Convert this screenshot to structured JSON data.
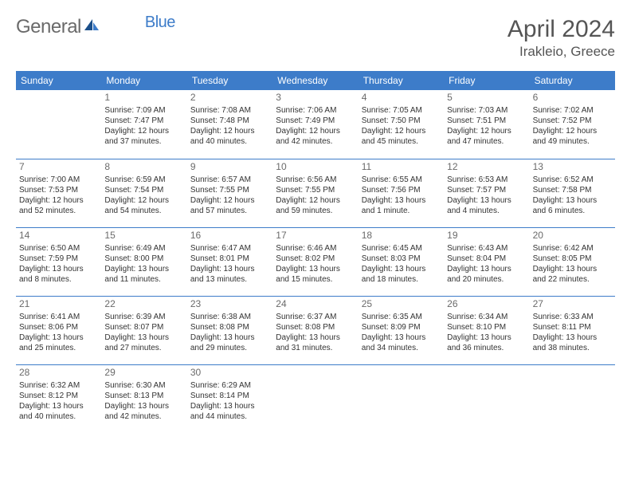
{
  "logo": {
    "text1": "General",
    "text2": "Blue"
  },
  "title": "April 2024",
  "location": "Irakleio, Greece",
  "header_colors": {
    "bar": "#3d7cc9",
    "text": "#ffffff"
  },
  "grid": {
    "rows": 5,
    "cols": 7,
    "border_color": "#3d7cc9"
  },
  "dayNames": [
    "Sunday",
    "Monday",
    "Tuesday",
    "Wednesday",
    "Thursday",
    "Friday",
    "Saturday"
  ],
  "weeks": [
    [
      null,
      {
        "n": "1",
        "sr": "Sunrise: 7:09 AM",
        "ss": "Sunset: 7:47 PM",
        "d1": "Daylight: 12 hours",
        "d2": "and 37 minutes."
      },
      {
        "n": "2",
        "sr": "Sunrise: 7:08 AM",
        "ss": "Sunset: 7:48 PM",
        "d1": "Daylight: 12 hours",
        "d2": "and 40 minutes."
      },
      {
        "n": "3",
        "sr": "Sunrise: 7:06 AM",
        "ss": "Sunset: 7:49 PM",
        "d1": "Daylight: 12 hours",
        "d2": "and 42 minutes."
      },
      {
        "n": "4",
        "sr": "Sunrise: 7:05 AM",
        "ss": "Sunset: 7:50 PM",
        "d1": "Daylight: 12 hours",
        "d2": "and 45 minutes."
      },
      {
        "n": "5",
        "sr": "Sunrise: 7:03 AM",
        "ss": "Sunset: 7:51 PM",
        "d1": "Daylight: 12 hours",
        "d2": "and 47 minutes."
      },
      {
        "n": "6",
        "sr": "Sunrise: 7:02 AM",
        "ss": "Sunset: 7:52 PM",
        "d1": "Daylight: 12 hours",
        "d2": "and 49 minutes."
      }
    ],
    [
      {
        "n": "7",
        "sr": "Sunrise: 7:00 AM",
        "ss": "Sunset: 7:53 PM",
        "d1": "Daylight: 12 hours",
        "d2": "and 52 minutes."
      },
      {
        "n": "8",
        "sr": "Sunrise: 6:59 AM",
        "ss": "Sunset: 7:54 PM",
        "d1": "Daylight: 12 hours",
        "d2": "and 54 minutes."
      },
      {
        "n": "9",
        "sr": "Sunrise: 6:57 AM",
        "ss": "Sunset: 7:55 PM",
        "d1": "Daylight: 12 hours",
        "d2": "and 57 minutes."
      },
      {
        "n": "10",
        "sr": "Sunrise: 6:56 AM",
        "ss": "Sunset: 7:55 PM",
        "d1": "Daylight: 12 hours",
        "d2": "and 59 minutes."
      },
      {
        "n": "11",
        "sr": "Sunrise: 6:55 AM",
        "ss": "Sunset: 7:56 PM",
        "d1": "Daylight: 13 hours",
        "d2": "and 1 minute."
      },
      {
        "n": "12",
        "sr": "Sunrise: 6:53 AM",
        "ss": "Sunset: 7:57 PM",
        "d1": "Daylight: 13 hours",
        "d2": "and 4 minutes."
      },
      {
        "n": "13",
        "sr": "Sunrise: 6:52 AM",
        "ss": "Sunset: 7:58 PM",
        "d1": "Daylight: 13 hours",
        "d2": "and 6 minutes."
      }
    ],
    [
      {
        "n": "14",
        "sr": "Sunrise: 6:50 AM",
        "ss": "Sunset: 7:59 PM",
        "d1": "Daylight: 13 hours",
        "d2": "and 8 minutes."
      },
      {
        "n": "15",
        "sr": "Sunrise: 6:49 AM",
        "ss": "Sunset: 8:00 PM",
        "d1": "Daylight: 13 hours",
        "d2": "and 11 minutes."
      },
      {
        "n": "16",
        "sr": "Sunrise: 6:47 AM",
        "ss": "Sunset: 8:01 PM",
        "d1": "Daylight: 13 hours",
        "d2": "and 13 minutes."
      },
      {
        "n": "17",
        "sr": "Sunrise: 6:46 AM",
        "ss": "Sunset: 8:02 PM",
        "d1": "Daylight: 13 hours",
        "d2": "and 15 minutes."
      },
      {
        "n": "18",
        "sr": "Sunrise: 6:45 AM",
        "ss": "Sunset: 8:03 PM",
        "d1": "Daylight: 13 hours",
        "d2": "and 18 minutes."
      },
      {
        "n": "19",
        "sr": "Sunrise: 6:43 AM",
        "ss": "Sunset: 8:04 PM",
        "d1": "Daylight: 13 hours",
        "d2": "and 20 minutes."
      },
      {
        "n": "20",
        "sr": "Sunrise: 6:42 AM",
        "ss": "Sunset: 8:05 PM",
        "d1": "Daylight: 13 hours",
        "d2": "and 22 minutes."
      }
    ],
    [
      {
        "n": "21",
        "sr": "Sunrise: 6:41 AM",
        "ss": "Sunset: 8:06 PM",
        "d1": "Daylight: 13 hours",
        "d2": "and 25 minutes."
      },
      {
        "n": "22",
        "sr": "Sunrise: 6:39 AM",
        "ss": "Sunset: 8:07 PM",
        "d1": "Daylight: 13 hours",
        "d2": "and 27 minutes."
      },
      {
        "n": "23",
        "sr": "Sunrise: 6:38 AM",
        "ss": "Sunset: 8:08 PM",
        "d1": "Daylight: 13 hours",
        "d2": "and 29 minutes."
      },
      {
        "n": "24",
        "sr": "Sunrise: 6:37 AM",
        "ss": "Sunset: 8:08 PM",
        "d1": "Daylight: 13 hours",
        "d2": "and 31 minutes."
      },
      {
        "n": "25",
        "sr": "Sunrise: 6:35 AM",
        "ss": "Sunset: 8:09 PM",
        "d1": "Daylight: 13 hours",
        "d2": "and 34 minutes."
      },
      {
        "n": "26",
        "sr": "Sunrise: 6:34 AM",
        "ss": "Sunset: 8:10 PM",
        "d1": "Daylight: 13 hours",
        "d2": "and 36 minutes."
      },
      {
        "n": "27",
        "sr": "Sunrise: 6:33 AM",
        "ss": "Sunset: 8:11 PM",
        "d1": "Daylight: 13 hours",
        "d2": "and 38 minutes."
      }
    ],
    [
      {
        "n": "28",
        "sr": "Sunrise: 6:32 AM",
        "ss": "Sunset: 8:12 PM",
        "d1": "Daylight: 13 hours",
        "d2": "and 40 minutes."
      },
      {
        "n": "29",
        "sr": "Sunrise: 6:30 AM",
        "ss": "Sunset: 8:13 PM",
        "d1": "Daylight: 13 hours",
        "d2": "and 42 minutes."
      },
      {
        "n": "30",
        "sr": "Sunrise: 6:29 AM",
        "ss": "Sunset: 8:14 PM",
        "d1": "Daylight: 13 hours",
        "d2": "and 44 minutes."
      },
      null,
      null,
      null,
      null
    ]
  ]
}
